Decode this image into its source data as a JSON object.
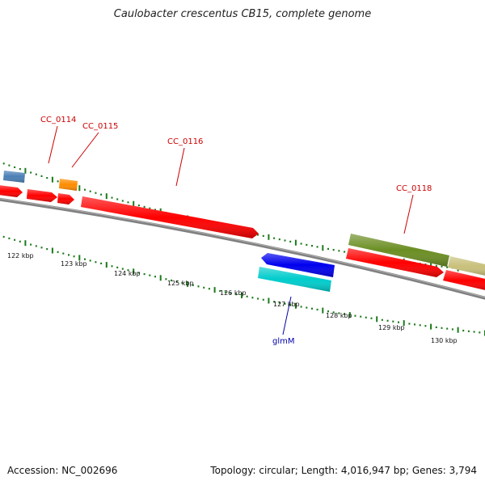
{
  "title": "Caulobacter crescentus CB15, complete genome",
  "footer": {
    "accession": "Accession: NC_002696",
    "summary": "Topology: circular; Length: 4,016,947 bp; Genes: 3,794"
  },
  "colors": {
    "forward_gene": "#ff0000",
    "reverse_gene": "#0000ee",
    "rna_cyan": "#00cccc",
    "olive": "#6b8e23",
    "khaki": "#c8c07a",
    "orange": "#ff8c00",
    "steel_blue": "#4a7fb5",
    "backbone": "#888888",
    "tick_green": "#1a7a1a",
    "label_red": "#cc0000",
    "label_blue": "#0000aa"
  },
  "scale_labels": [
    "122 kbp",
    "123 kbp",
    "124 kbp",
    "125 kbp",
    "126 kbp",
    "127 kbp",
    "128 kbp",
    "129 kbp",
    "130 kbp"
  ],
  "gene_labels": [
    {
      "name": "CC_0114",
      "color": "label_red"
    },
    {
      "name": "CC_0115",
      "color": "label_red"
    },
    {
      "name": "CC_0116",
      "color": "label_red"
    },
    {
      "name": "CC_0118",
      "color": "label_red"
    },
    {
      "name": "glmM",
      "color": "label_blue"
    }
  ]
}
